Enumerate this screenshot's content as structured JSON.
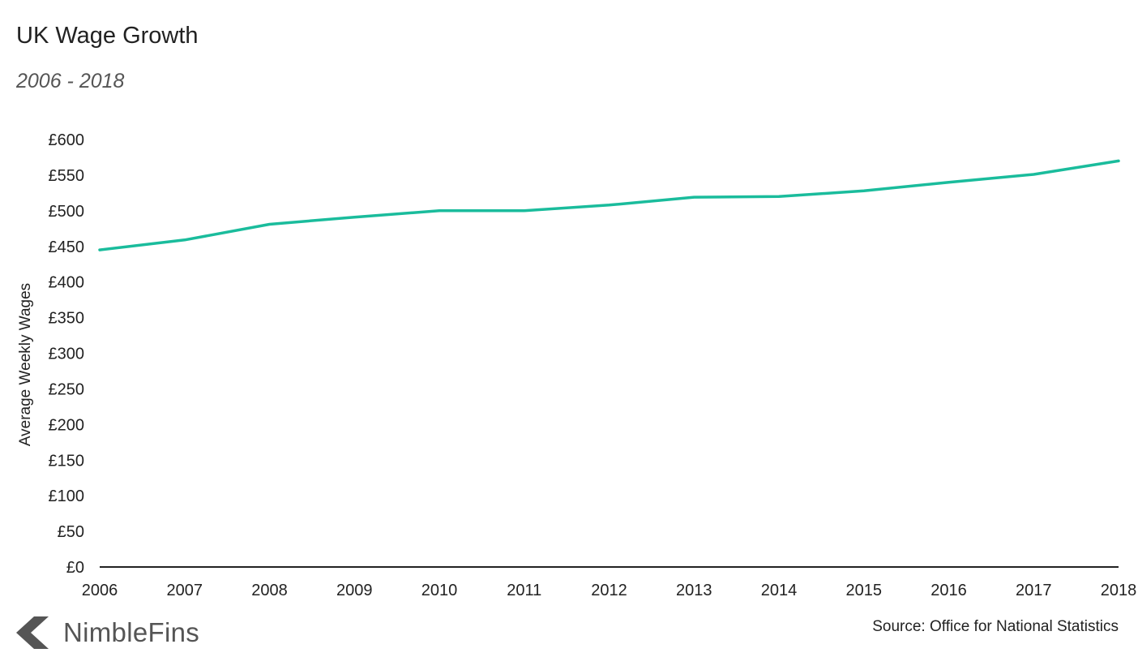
{
  "header": {
    "title": "UK Wage Growth",
    "subtitle": "2006 - 2018"
  },
  "footer": {
    "brand": "NimbleFins",
    "source": "Source: Office for National Statistics"
  },
  "colors": {
    "line": "#1abc9c",
    "axis": "#222222",
    "text": "#222222",
    "logo": "#555555"
  },
  "icons": {
    "logo_mark": "chevron-left-icon"
  },
  "chart_data": {
    "type": "line",
    "title": "UK Wage Growth",
    "subtitle": "2006 - 2018",
    "xlabel": "",
    "ylabel": "Average Weekly Wages",
    "x": [
      2006,
      2007,
      2008,
      2009,
      2010,
      2011,
      2012,
      2013,
      2014,
      2015,
      2016,
      2017,
      2018
    ],
    "series": [
      {
        "values": [
          445,
          459,
          481,
          491,
          500,
          500,
          508,
          519,
          520,
          528,
          540,
          551,
          570
        ]
      }
    ],
    "ylim": [
      0,
      600
    ],
    "yticks": [
      0,
      50,
      100,
      150,
      200,
      250,
      300,
      350,
      400,
      450,
      500,
      550,
      600
    ],
    "ytick_labels": [
      "£0",
      "£50",
      "£100",
      "£150",
      "£200",
      "£250",
      "£300",
      "£350",
      "£400",
      "£450",
      "£500",
      "£550",
      "£600"
    ],
    "xtick_labels": [
      "2006",
      "2007",
      "2008",
      "2009",
      "2010",
      "2011",
      "2012",
      "2013",
      "2014",
      "2015",
      "2016",
      "2017",
      "2018"
    ],
    "grid": false,
    "legend": "none"
  }
}
